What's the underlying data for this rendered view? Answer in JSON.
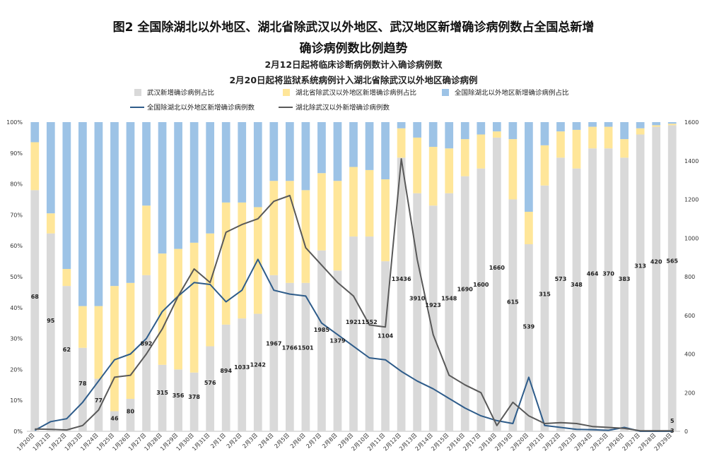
{
  "chart_data": {
    "type": "bar",
    "title_line1": "图2 全国除湖北以外地区、湖北省除武汉以外地区、武汉地区新增确诊病例数占全国总新增",
    "title_line2": "确诊病例数比例趋势",
    "subtitle_line1": "2月12日起将临床诊断病例数计入确诊病例数",
    "subtitle_line2": "2月20日起将监狱系统病例计入湖北省除武汉以外地区确诊病例",
    "categories": [
      "1月20日",
      "1月21日",
      "1月22日",
      "1月23日",
      "1月24日",
      "1月25日",
      "1月26日",
      "1月27日",
      "1月28日",
      "1月29日",
      "1月30日",
      "1月31日",
      "2月1日",
      "2月2日",
      "2月3日",
      "2月4日",
      "2月5日",
      "2月6日",
      "2月7日",
      "2月8日",
      "2月9日",
      "2月10日",
      "2月11日",
      "2月12日",
      "2月13日",
      "2月14日",
      "2月15日",
      "2月16日",
      "2月17日",
      "2月18日",
      "2月19日",
      "2月20日",
      "2月21日",
      "2月22日",
      "2月23日",
      "2月24日",
      "2月25日",
      "2月26日",
      "2月27日",
      "2月28日",
      "2月29日"
    ],
    "y_left_ticks": [
      "0%",
      "10%",
      "20%",
      "30%",
      "40%",
      "50%",
      "60%",
      "70%",
      "80%",
      "90%",
      "100%"
    ],
    "y_right_ticks": [
      "0",
      "200",
      "400",
      "600",
      "800",
      "1000",
      "1200",
      "1400",
      "1600"
    ],
    "y_right_lim": [
      0,
      1600
    ],
    "series": [
      {
        "name": "武汉新增确诊病例占比",
        "color": "#d9d9d9",
        "values": [
          0.78,
          0.64,
          0.47,
          0.27,
          0.17,
          0.065,
          0.105,
          0.505,
          0.215,
          0.2,
          0.19,
          0.275,
          0.345,
          0.365,
          0.38,
          0.505,
          0.48,
          0.48,
          0.585,
          0.52,
          0.63,
          0.63,
          0.55,
          0.885,
          0.77,
          0.73,
          0.77,
          0.825,
          0.85,
          0.95,
          0.75,
          0.605,
          0.795,
          0.885,
          0.85,
          0.915,
          0.915,
          0.885,
          0.96,
          0.985,
          0.99
        ]
      },
      {
        "name": "湖北省除武汉以外地区新增确诊病例占比",
        "color": "#ffe699",
        "values": [
          0.155,
          0.065,
          0.055,
          0.135,
          0.235,
          0.405,
          0.375,
          0.225,
          0.36,
          0.39,
          0.42,
          0.365,
          0.395,
          0.375,
          0.345,
          0.305,
          0.33,
          0.3,
          0.25,
          0.29,
          0.225,
          0.215,
          0.265,
          0.095,
          0.18,
          0.19,
          0.145,
          0.12,
          0.11,
          0.02,
          0.195,
          0.105,
          0.13,
          0.085,
          0.125,
          0.07,
          0.07,
          0.06,
          0.02,
          0.005,
          0.005
        ]
      },
      {
        "name": "全国除湖北以外地区新增确诊病例占比",
        "color": "#9dc3e6",
        "values": [
          0.065,
          0.295,
          0.475,
          0.595,
          0.595,
          0.53,
          0.52,
          0.27,
          0.425,
          0.41,
          0.39,
          0.36,
          0.26,
          0.26,
          0.275,
          0.19,
          0.19,
          0.22,
          0.165,
          0.19,
          0.145,
          0.155,
          0.185,
          0.02,
          0.05,
          0.08,
          0.085,
          0.055,
          0.04,
          0.03,
          0.055,
          0.29,
          0.075,
          0.03,
          0.025,
          0.015,
          0.015,
          0.055,
          0.02,
          0.01,
          0.005
        ]
      },
      {
        "name": "全国除湖北以外地区新增确诊病例数",
        "color": "#2e5c8a",
        "axis": "right",
        "values": [
          5,
          50,
          65,
          150,
          260,
          370,
          400,
          480,
          620,
          700,
          770,
          760,
          670,
          730,
          890,
          730,
          710,
          700,
          560,
          500,
          440,
          380,
          370,
          310,
          260,
          220,
          170,
          120,
          80,
          55,
          40,
          280,
          30,
          20,
          10,
          8,
          5,
          20,
          0,
          0,
          0
        ]
      },
      {
        "name": "湖北除武汉以外新增确诊病例数",
        "color": "#595959",
        "axis": "right",
        "values": [
          12,
          10,
          7,
          30,
          110,
          280,
          290,
          400,
          530,
          700,
          840,
          770,
          1030,
          1070,
          1100,
          1190,
          1220,
          950,
          860,
          770,
          700,
          550,
          540,
          1410,
          890,
          500,
          290,
          240,
          200,
          30,
          150,
          80,
          40,
          45,
          40,
          25,
          20,
          15,
          3,
          3,
          3
        ]
      }
    ],
    "wuhan_labels": [
      "68",
      "95",
      "62",
      "78",
      "77",
      "46",
      "80",
      "892",
      "315",
      "356",
      "378",
      "576",
      "894",
      "1033",
      "1242",
      "1967",
      "1766",
      "1501",
      "1985",
      "1379",
      "1921",
      "1552",
      "1104",
      "13436",
      "3910",
      "1923",
      "1548",
      "1690",
      "1600",
      "1660",
      "615",
      "539",
      "315",
      "573",
      "348",
      "464",
      "370",
      "383",
      "313",
      "420",
      "565"
    ],
    "extra_labels": [
      "5",
      "3"
    ],
    "legend_position": "top",
    "grid": false
  }
}
